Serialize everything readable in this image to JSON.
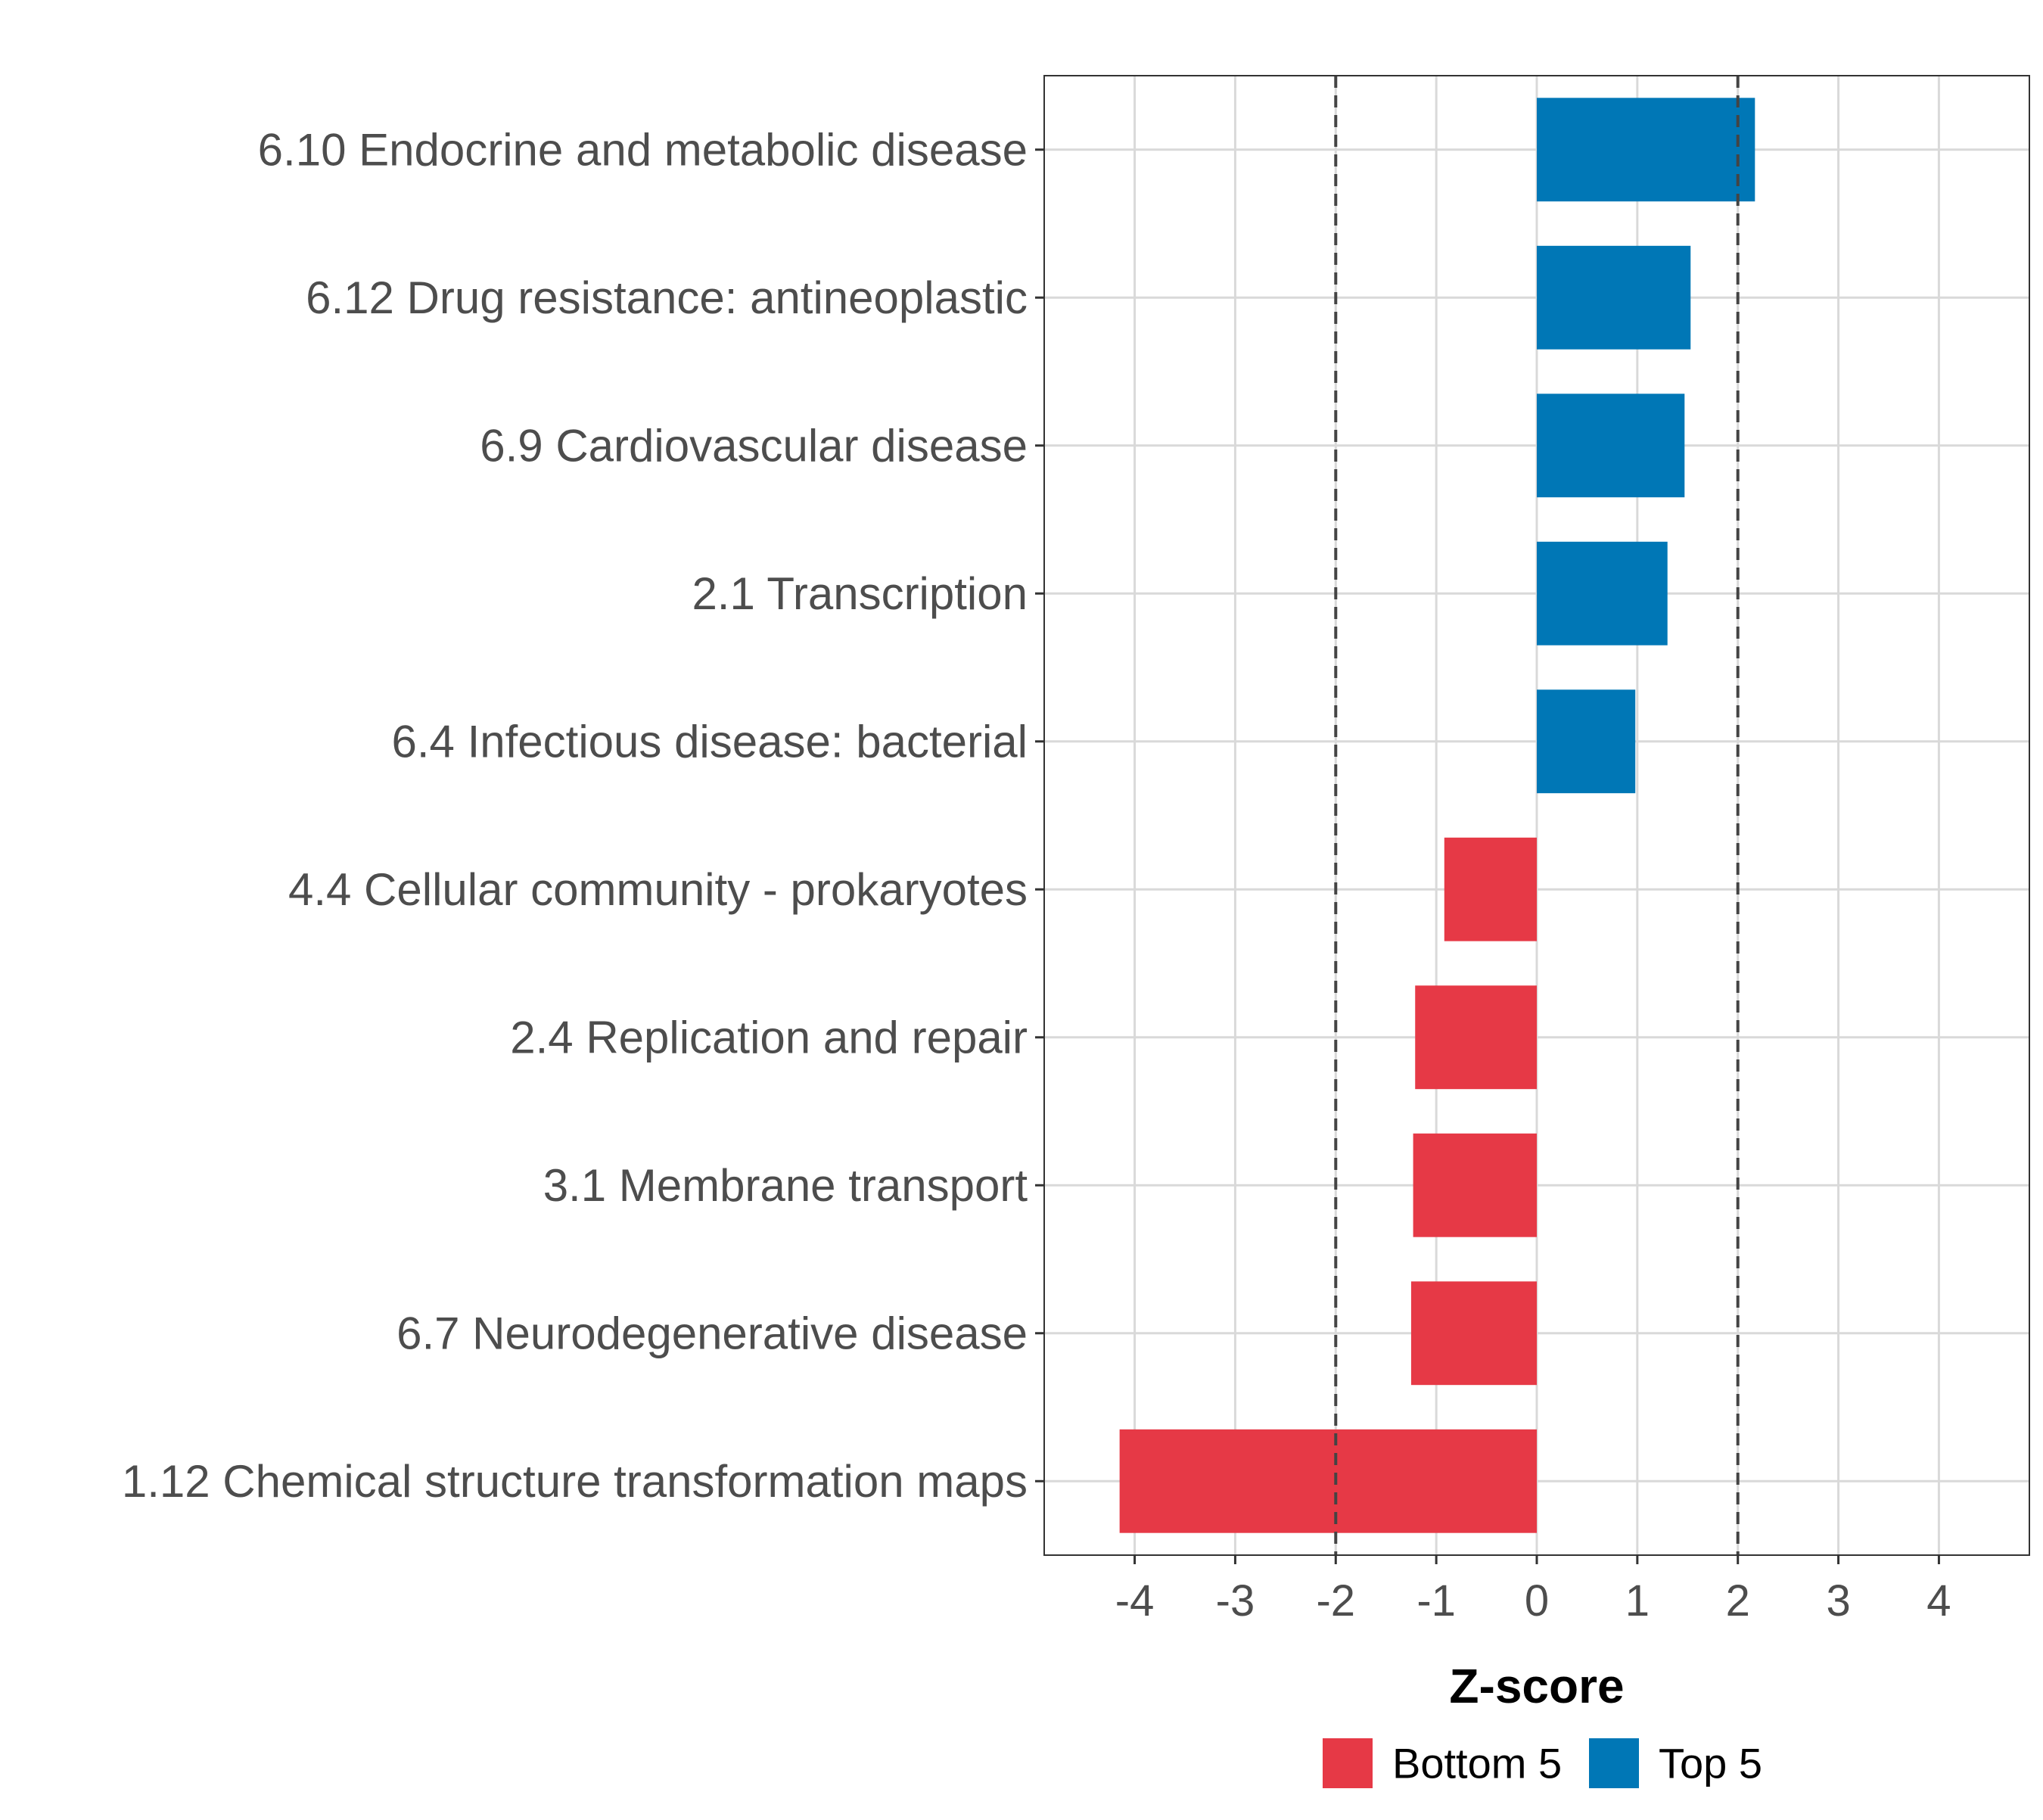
{
  "chart_data": {
    "type": "bar",
    "orientation": "horizontal",
    "categories": [
      "6.10 Endocrine and metabolic disease",
      "6.12 Drug resistance: antineoplastic",
      "6.9 Cardiovascular disease",
      "2.1 Transcription",
      "6.4 Infectious disease: bacterial",
      "4.4 Cellular community - prokaryotes",
      "2.4 Replication and repair",
      "3.1 Membrane transport",
      "6.7 Neurodegenerative disease",
      "1.12 Chemical structure transformation maps"
    ],
    "values": [
      2.17,
      1.53,
      1.47,
      1.3,
      0.98,
      -0.92,
      -1.21,
      -1.23,
      -1.25,
      -4.15
    ],
    "groups": [
      "Top 5",
      "Top 5",
      "Top 5",
      "Top 5",
      "Top 5",
      "Bottom 5",
      "Bottom 5",
      "Bottom 5",
      "Bottom 5",
      "Bottom 5"
    ],
    "xlabel": "Z-score",
    "ylabel": "",
    "xlim": [
      -4.9,
      4.9
    ],
    "xticks": [
      -4,
      -3,
      -2,
      -1,
      0,
      1,
      2,
      3,
      4
    ],
    "xtick_labels": [
      "-4",
      "-3",
      "-2",
      "-1",
      "0",
      "1",
      "2",
      "3",
      "4"
    ],
    "reference_lines": [
      -2,
      2
    ],
    "grid": true,
    "legend_position": "bottom",
    "legend": [
      {
        "name": "Bottom 5",
        "color": "#e63946"
      },
      {
        "name": "Top 5",
        "color": "#0077b6"
      }
    ],
    "colors": {
      "Top 5": "#0077b6",
      "Bottom 5": "#e63946"
    }
  }
}
